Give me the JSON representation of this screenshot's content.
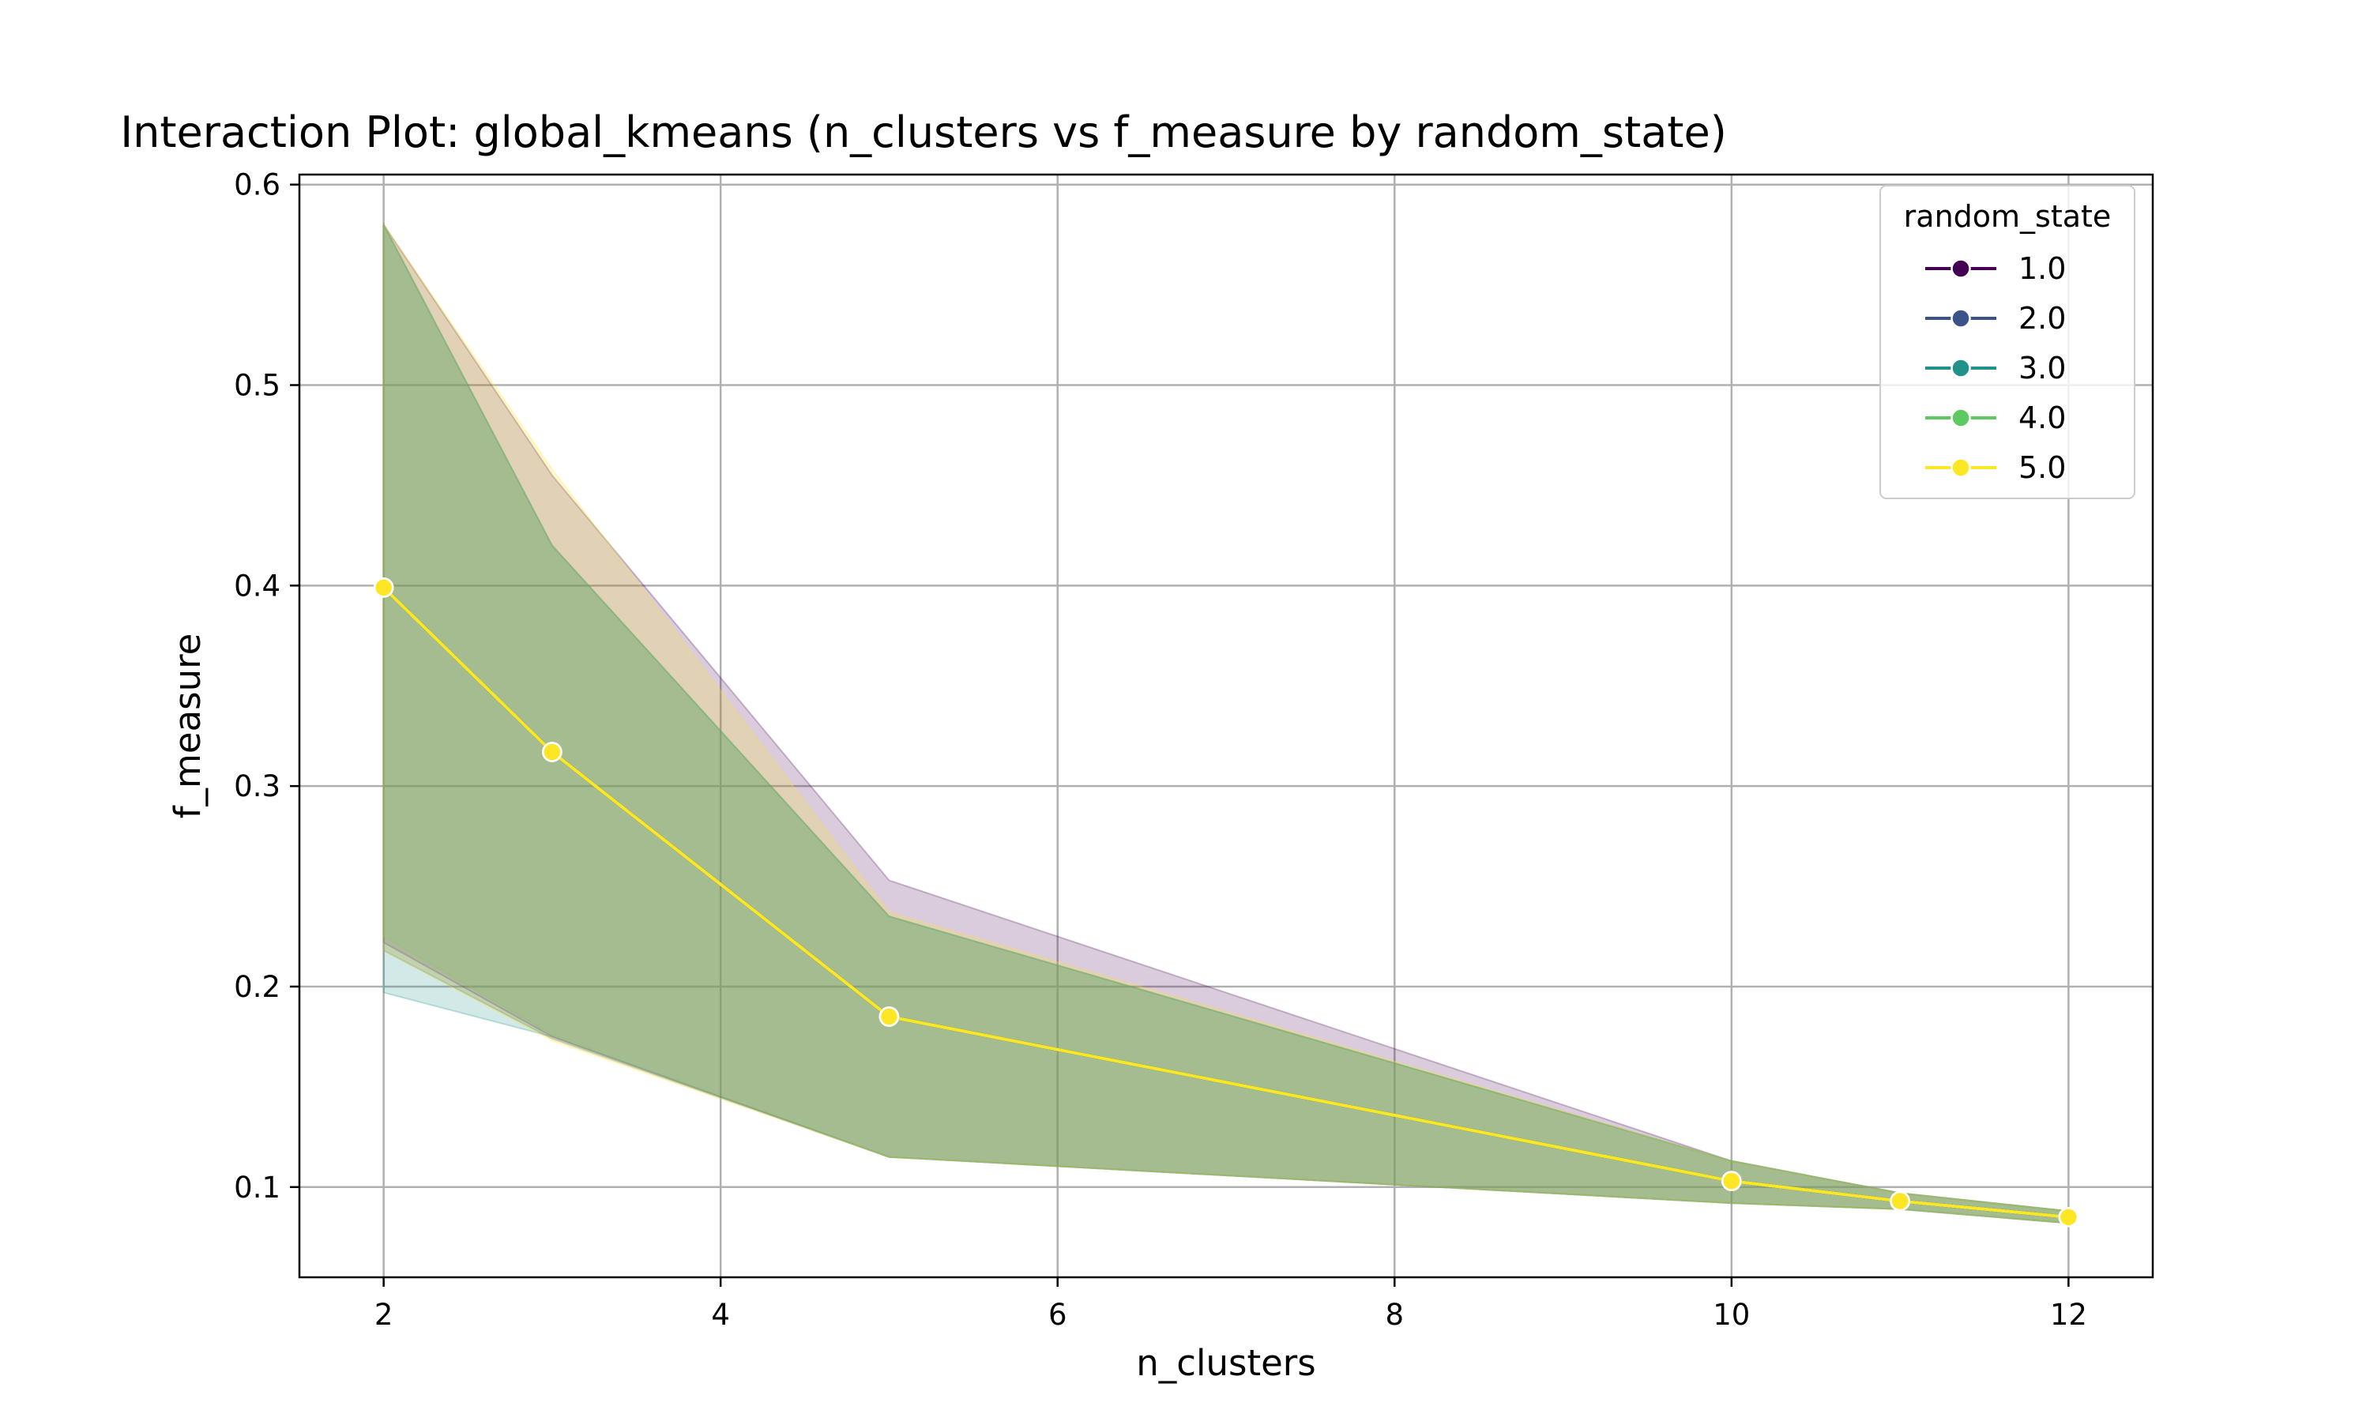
{
  "chart_data": {
    "type": "line",
    "title": "Interaction Plot: global_kmeans (n_clusters vs f_measure by random_state)",
    "xlabel": "n_clusters",
    "ylabel": "f_measure",
    "xlim": [
      1.5,
      12.5
    ],
    "ylim": [
      0.055,
      0.605
    ],
    "xticks": [
      2,
      4,
      6,
      8,
      10,
      12
    ],
    "yticks": [
      0.1,
      0.2,
      0.3,
      0.4,
      0.5,
      0.6
    ],
    "xtick_labels": [
      "2",
      "4",
      "6",
      "8",
      "10",
      "12"
    ],
    "ytick_labels": [
      "0.1",
      "0.2",
      "0.3",
      "0.4",
      "0.5",
      "0.6"
    ],
    "grid": true,
    "legend": {
      "title": "random_state",
      "placement": "top-right"
    },
    "x": [
      2,
      3,
      5,
      10,
      11,
      12
    ],
    "series": [
      {
        "name": "1.0",
        "color": "#440154",
        "values": [
          0.399,
          0.317,
          0.185,
          0.103,
          0.093,
          0.085
        ],
        "band_upper": [
          0.58,
          0.455,
          0.253,
          0.113,
          0.097,
          0.088
        ],
        "band_lower": [
          0.222,
          0.175,
          0.115,
          0.092,
          0.089,
          0.082
        ]
      },
      {
        "name": "2.0",
        "color": "#3b528b",
        "values": [
          0.399,
          0.317,
          0.185,
          0.103,
          0.093,
          0.085
        ],
        "band_upper": [
          0.58,
          0.42,
          0.235,
          0.113,
          0.097,
          0.088
        ],
        "band_lower": [
          0.218,
          0.174,
          0.115,
          0.092,
          0.089,
          0.082
        ]
      },
      {
        "name": "3.0",
        "color": "#21918c",
        "values": [
          0.399,
          0.317,
          0.185,
          0.103,
          0.093,
          0.085
        ],
        "band_upper": [
          0.58,
          0.42,
          0.235,
          0.113,
          0.097,
          0.088
        ],
        "band_lower": [
          0.197,
          0.175,
          0.115,
          0.092,
          0.089,
          0.082
        ]
      },
      {
        "name": "4.0",
        "color": "#5ec962",
        "values": [
          0.399,
          0.317,
          0.185,
          0.103,
          0.093,
          0.085
        ],
        "band_upper": [
          0.58,
          0.42,
          0.235,
          0.113,
          0.097,
          0.088
        ],
        "band_lower": [
          0.225,
          0.176,
          0.115,
          0.092,
          0.089,
          0.082
        ]
      },
      {
        "name": "5.0",
        "color": "#fde725",
        "values": [
          0.399,
          0.317,
          0.185,
          0.103,
          0.093,
          0.085
        ],
        "band_upper": [
          0.58,
          0.458,
          0.237,
          0.113,
          0.097,
          0.088
        ],
        "band_lower": [
          0.218,
          0.173,
          0.115,
          0.092,
          0.089,
          0.082
        ]
      }
    ]
  }
}
